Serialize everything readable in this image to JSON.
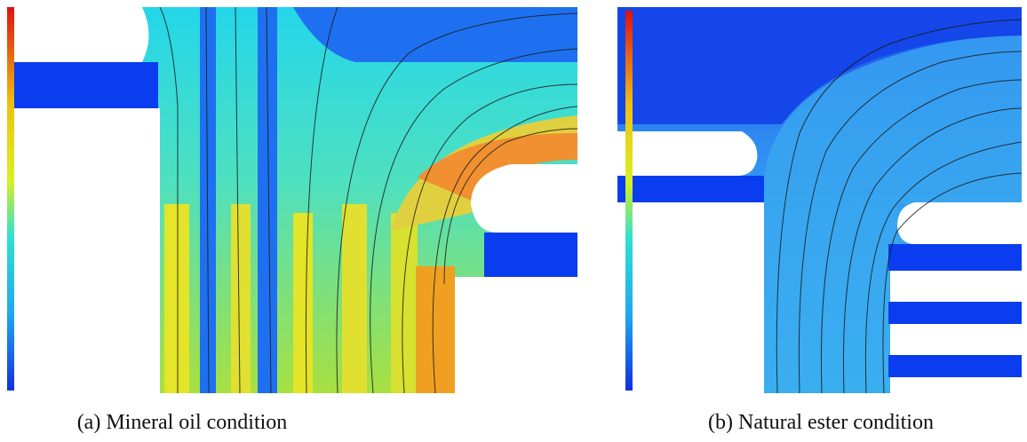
{
  "panels": [
    {
      "caption": "(a) Mineral oil condition"
    },
    {
      "caption": "(b) Natural ester condition"
    }
  ]
}
